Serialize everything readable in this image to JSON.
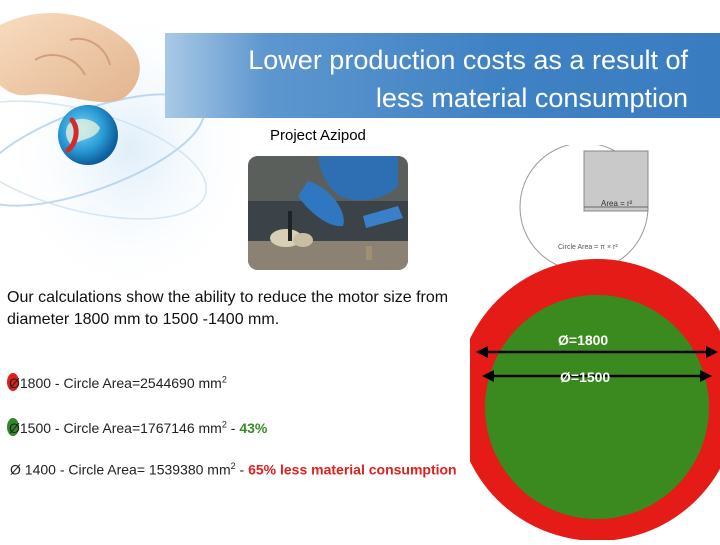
{
  "title": "Lower production costs as a result of less material consumption",
  "title_line1": "Lower production costs as a result of",
  "title_line2": "less material consumption",
  "subtitle": "Project Azipod",
  "body_text": "Our calculations show the ability to reduce the motor size from diameter 1800 mm to 1500 -1400 mm.",
  "items": [
    {
      "lead": "Ø",
      "text": "1800 - Circle Area=2544690 mm",
      "sup": "2",
      "highlight": "",
      "lead_color": "#e0201c"
    },
    {
      "lead": "Ø",
      "text": "1500 - Circle Area=1767146 mm",
      "sup": "2",
      "sep": " - ",
      "highlight": "43%",
      "lead_color": "#2f8a2a"
    },
    {
      "lead": "Ø",
      "text": "1400 - Circle Area= 1539380 mm",
      "sup": "2",
      "sep": " - ",
      "highlight": "65% less material consumption",
      "lead_color": ""
    }
  ],
  "diagram": {
    "outer_label": "Ø=1800",
    "inner_label": "Ø=1500",
    "sketch_area_label": "Area = r²",
    "sketch_circle_label": "Circle Area = π × r²",
    "colors": {
      "outer": "#e41b17",
      "inner": "#3b8a1f",
      "label": "#ffffff",
      "title_bar": "#3f82c4",
      "highlight": "#e0201c"
    }
  }
}
